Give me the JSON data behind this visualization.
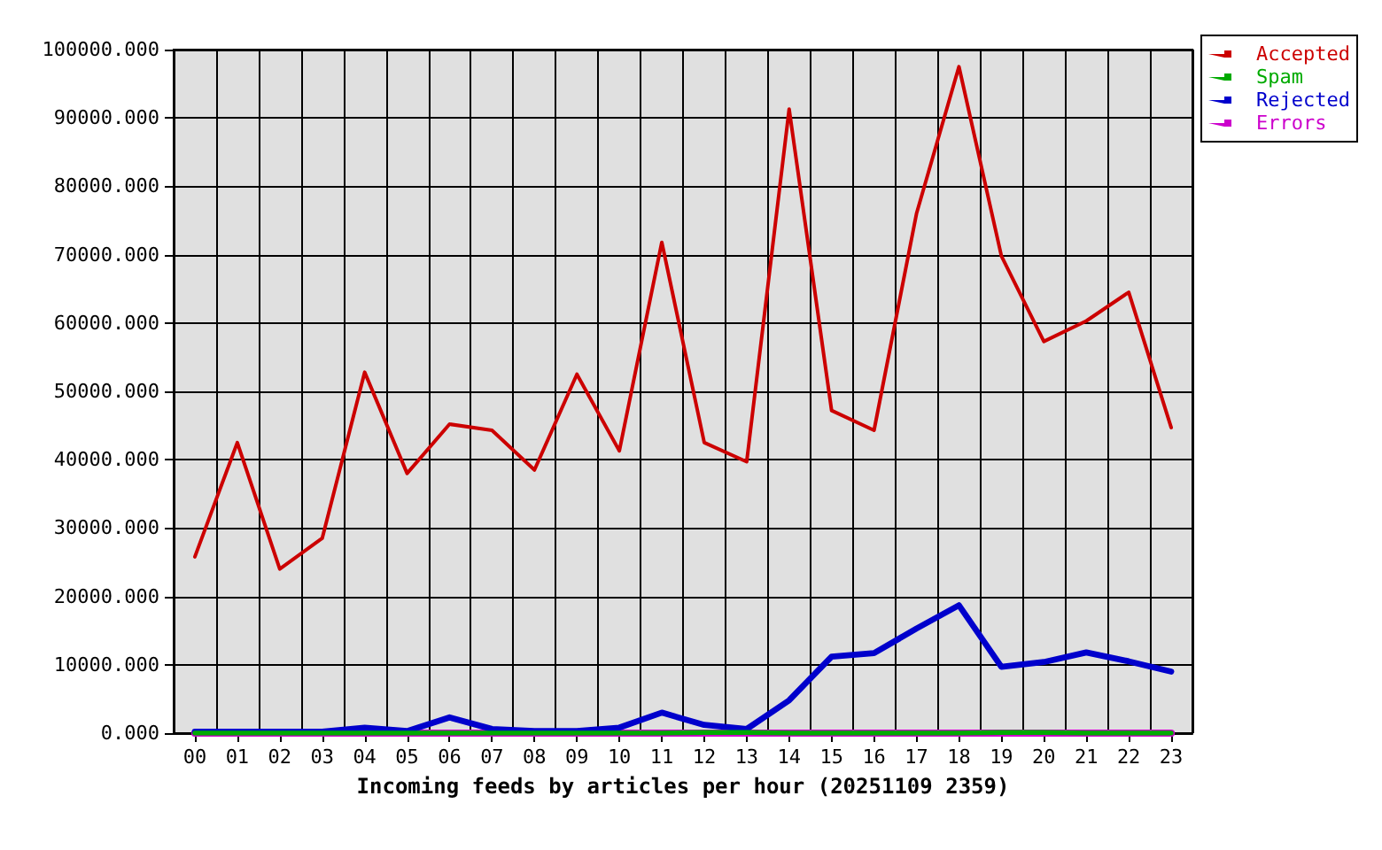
{
  "chart_data": {
    "type": "line",
    "xlabel": "Incoming feeds by articles per hour (20251109 2359)",
    "categories": [
      "00",
      "01",
      "02",
      "03",
      "04",
      "05",
      "06",
      "07",
      "08",
      "09",
      "10",
      "11",
      "12",
      "13",
      "14",
      "15",
      "16",
      "17",
      "18",
      "19",
      "20",
      "21",
      "22",
      "23"
    ],
    "series": [
      {
        "name": "Accepted",
        "color": "#cc0000",
        "values": [
          25800,
          42500,
          24000,
          28500,
          52800,
          38000,
          45200,
          44300,
          38500,
          52500,
          41300,
          71800,
          42500,
          39700,
          91300,
          47200,
          44300,
          76000,
          97500,
          69800,
          57300,
          60300,
          64500,
          44700
        ]
      },
      {
        "name": "Spam",
        "color": "#00aa00",
        "values": [
          0,
          0,
          0,
          0,
          0,
          0,
          0,
          0,
          0,
          0,
          0,
          0,
          100,
          100,
          0,
          0,
          0,
          0,
          0,
          100,
          100,
          0,
          0,
          0
        ]
      },
      {
        "name": "Rejected",
        "color": "#0000cc",
        "values": [
          200,
          200,
          200,
          200,
          800,
          300,
          2300,
          600,
          300,
          300,
          800,
          3000,
          1200,
          600,
          4800,
          11200,
          11700,
          15300,
          18700,
          9700,
          10400,
          11800,
          10500,
          9000
        ]
      },
      {
        "name": "Errors",
        "color": "#cc00cc",
        "values": [
          0,
          0,
          0,
          0,
          0,
          0,
          0,
          0,
          0,
          0,
          0,
          0,
          0,
          0,
          0,
          0,
          0,
          0,
          0,
          0,
          0,
          0,
          0,
          0
        ]
      }
    ],
    "ylim": [
      0,
      100000
    ],
    "yticks": [
      {
        "value": 0,
        "label": "0.000"
      },
      {
        "value": 10000,
        "label": "10000.000"
      },
      {
        "value": 20000,
        "label": "20000.000"
      },
      {
        "value": 30000,
        "label": "30000.000"
      },
      {
        "value": 40000,
        "label": "40000.000"
      },
      {
        "value": 50000,
        "label": "50000.000"
      },
      {
        "value": 60000,
        "label": "60000.000"
      },
      {
        "value": 70000,
        "label": "70000.000"
      },
      {
        "value": 80000,
        "label": "80000.000"
      },
      {
        "value": 90000,
        "label": "90000.000"
      },
      {
        "value": 100000,
        "label": "100000.000"
      }
    ],
    "grid": true,
    "legend": "top right",
    "marker": "none",
    "line_style": "solid"
  }
}
